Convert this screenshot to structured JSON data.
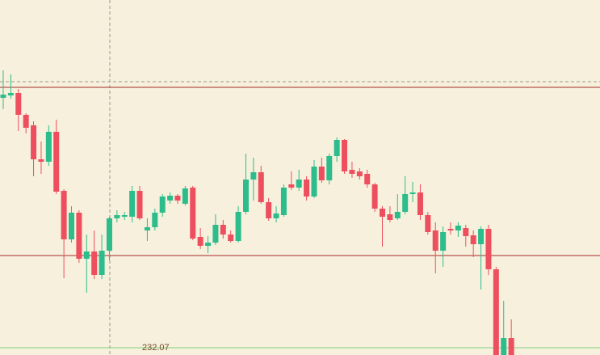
{
  "chart_data": {
    "type": "candlestick",
    "ylim": [
      0,
      439
    ],
    "up_color": "#2dbd8c",
    "down_color": "#ee4f5f",
    "open": [
      318,
      321,
      324,
      297,
      284,
      242,
      239,
      276,
      203,
      143,
      176,
      119,
      128,
      99,
      129,
      169,
      171,
      171,
      203,
      154,
      158,
      176,
      191,
      197,
      187,
      207,
      146,
      135,
      139,
      161,
      149,
      141,
      177,
      217,
      226,
      189,
      169,
      173,
      211,
      207,
      217,
      196,
      233,
      216,
      246,
      266,
      229,
      227,
      224,
      211,
      181,
      174,
      169,
      177,
      199,
      201,
      173,
      154,
      129,
      156,
      154,
      157,
      148,
      137,
      156,
      106,
      0,
      21
    ],
    "high": [
      352,
      347,
      329,
      299,
      289,
      264,
      284,
      291,
      205,
      184,
      179,
      149,
      154,
      149,
      171,
      179,
      177,
      209,
      209,
      169,
      181,
      199,
      201,
      199,
      209,
      209,
      157,
      147,
      174,
      167,
      154,
      184,
      249,
      244,
      234,
      194,
      184,
      211,
      227,
      229,
      221,
      241,
      244,
      249,
      269,
      267,
      239,
      231,
      229,
      213,
      184,
      184,
      199,
      221,
      214,
      211,
      177,
      164,
      159,
      164,
      164,
      161,
      154,
      159,
      161,
      109,
      67,
      44
    ],
    "low": [
      304,
      317,
      277,
      274,
      221,
      224,
      234,
      199,
      95,
      139,
      114,
      77,
      94,
      94,
      117,
      164,
      167,
      164,
      167,
      141,
      154,
      171,
      187,
      187,
      185,
      142,
      131,
      126,
      136,
      144,
      139,
      139,
      174,
      191,
      187,
      166,
      164,
      171,
      204,
      203,
      191,
      194,
      213,
      211,
      239,
      224,
      219,
      217,
      207,
      177,
      134,
      164,
      167,
      174,
      189,
      167,
      149,
      101,
      109,
      149,
      146,
      134,
      121,
      81,
      99,
      0,
      0,
      0
    ],
    "close": [
      322,
      324,
      297,
      281,
      242,
      239,
      276,
      202,
      143,
      176,
      119,
      128,
      99,
      129,
      169,
      173,
      173,
      203,
      169,
      158,
      176,
      196,
      197,
      191,
      206,
      144,
      135,
      139,
      161,
      149,
      141,
      177,
      217,
      226,
      189,
      169,
      175,
      207,
      207,
      217,
      196,
      233,
      216,
      246,
      266,
      227,
      224,
      221,
      211,
      181,
      171,
      167,
      177,
      199,
      201,
      173,
      152,
      129,
      152,
      154,
      160,
      147,
      137,
      156,
      106,
      0,
      21,
      0
    ],
    "levels": [
      331,
      123
    ],
    "level_color": "#a82a2a",
    "price_label": "232.07"
  }
}
